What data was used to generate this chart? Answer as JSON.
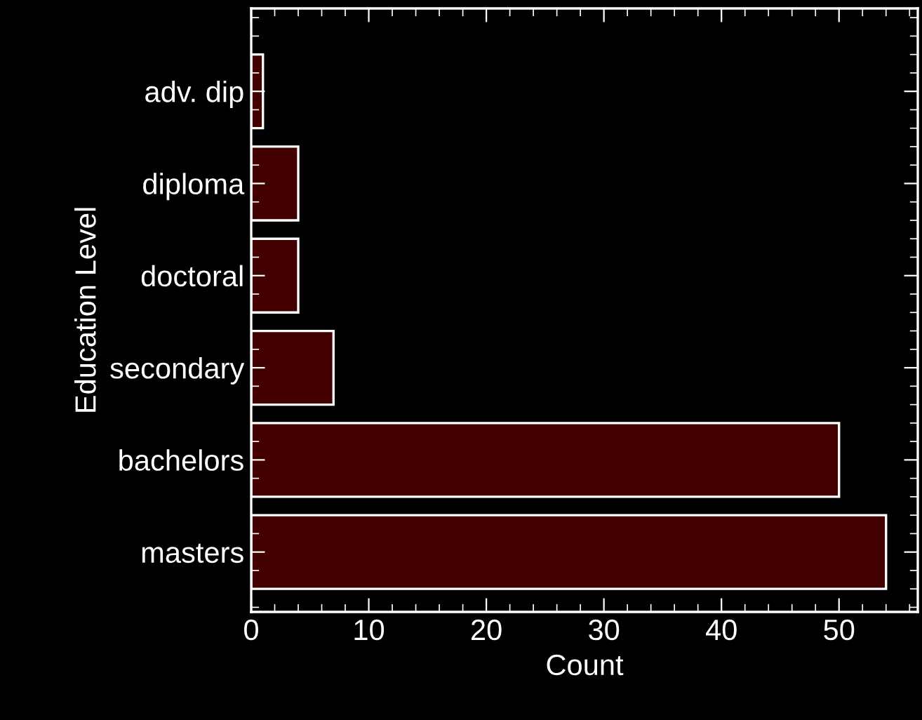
{
  "chart_data": {
    "type": "bar",
    "orientation": "horizontal",
    "xlabel": "Count",
    "ylabel": "Education Level",
    "categories": [
      "adv. dip",
      "diploma",
      "doctoral",
      "secondary",
      "bachelors",
      "masters"
    ],
    "values": [
      1,
      4,
      4,
      7,
      50,
      54
    ],
    "color": "#420000",
    "xlim": [
      0,
      56.7
    ],
    "xticks": [
      0,
      10,
      20,
      30,
      40,
      50
    ],
    "grid": false,
    "legend": false
  }
}
